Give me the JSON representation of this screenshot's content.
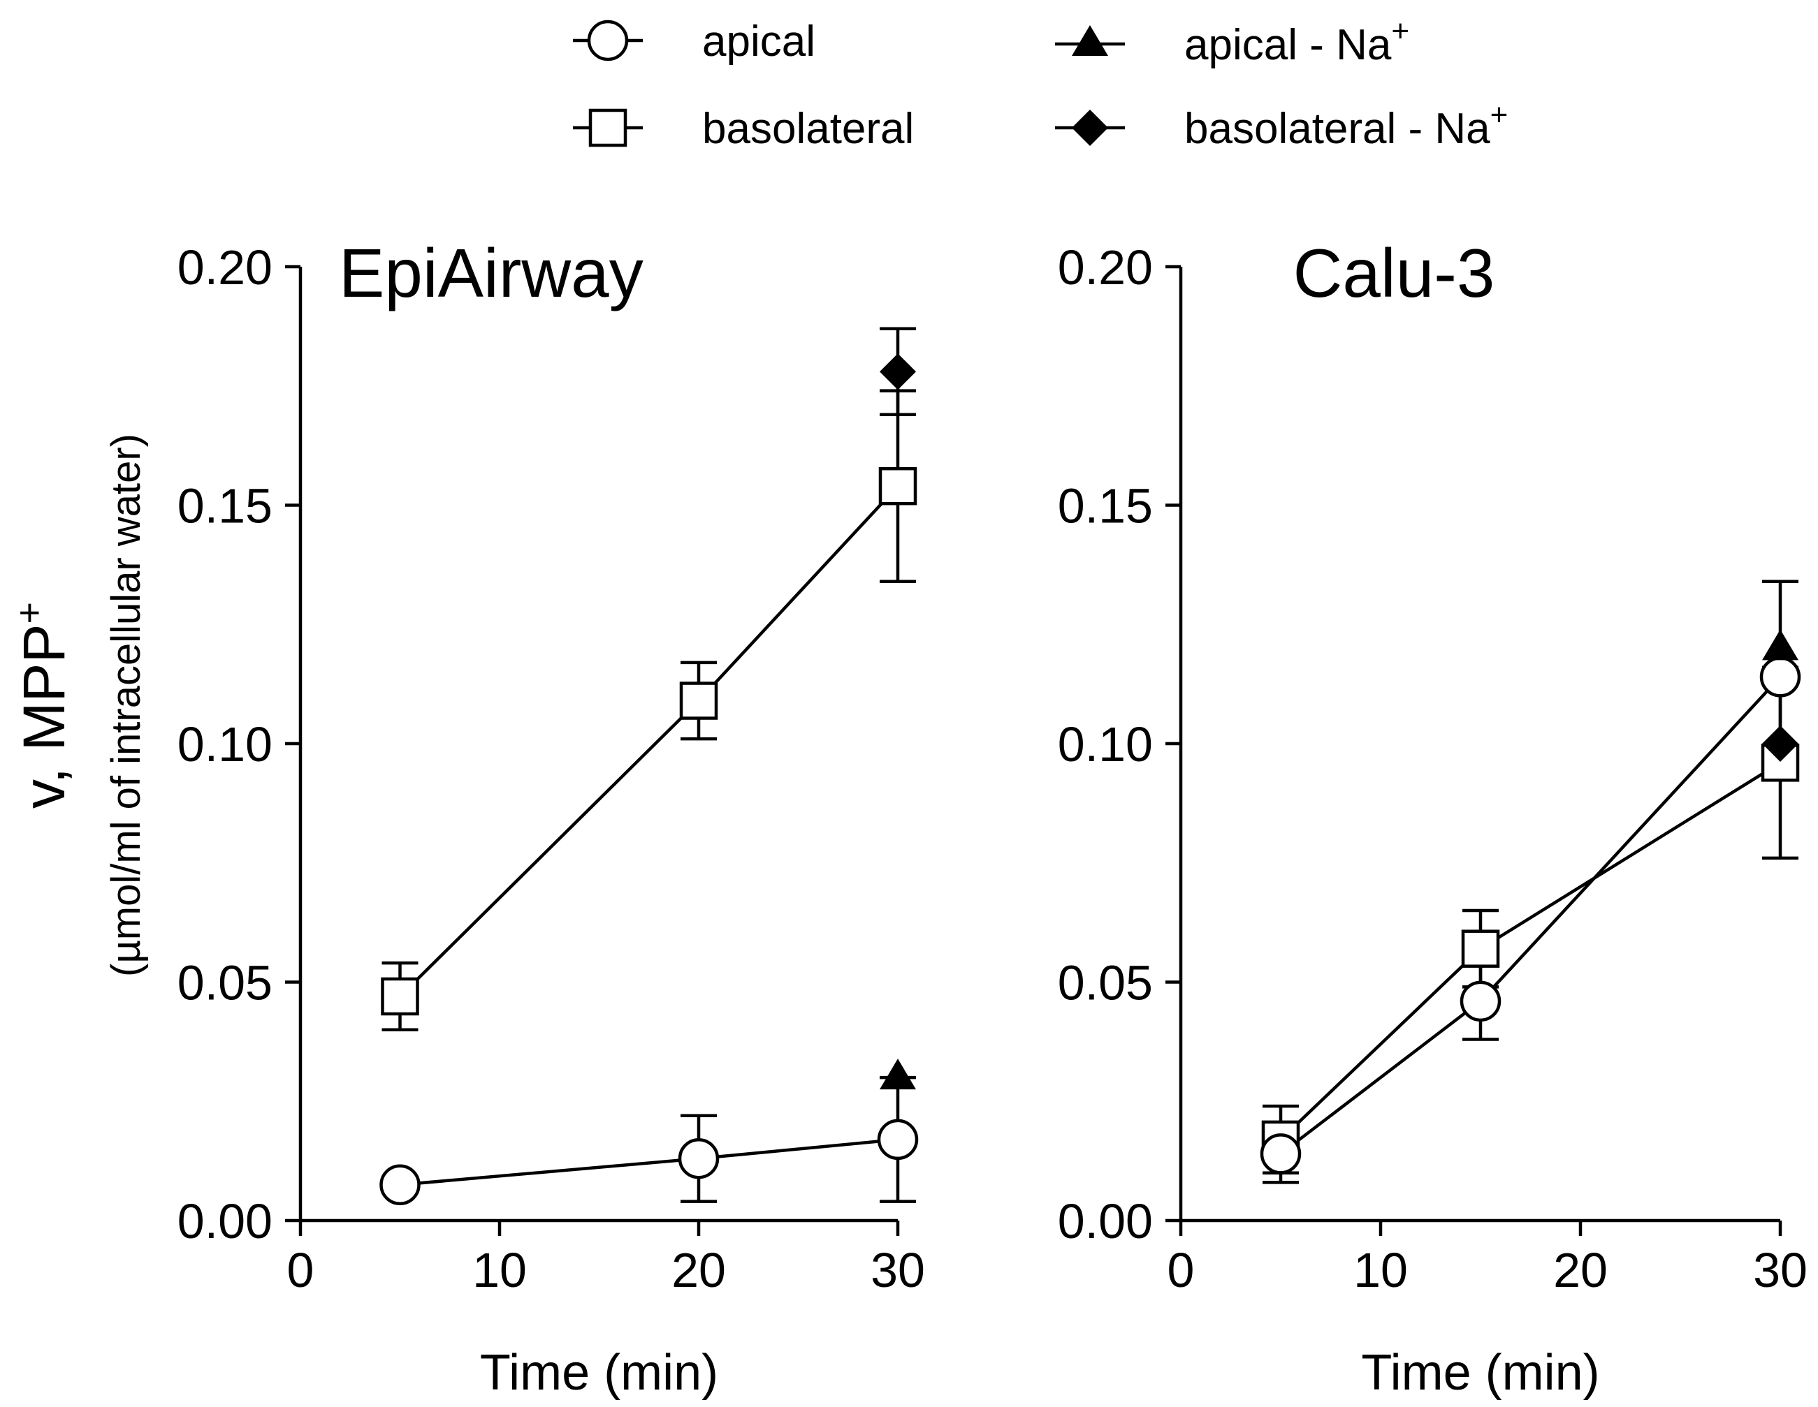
{
  "chart_data": {
    "type": "line",
    "legend": {
      "placement": "top",
      "entries": [
        {
          "label": "apical",
          "sup": "",
          "marker": "open-circle"
        },
        {
          "label": "basolateral",
          "sup": "",
          "marker": "open-square"
        },
        {
          "label": "apical - Na",
          "sup": "+",
          "marker": "filled-triangle"
        },
        {
          "label": "basolateral - Na",
          "sup": "+",
          "marker": "filled-diamond"
        }
      ]
    },
    "ylabel": {
      "main": "v, MPP",
      "sup": "+",
      "sub": "(µmol/ml of intracellular water)"
    },
    "panels": [
      {
        "title": "EpiAirway",
        "xlabel": "Time (min)",
        "xlim": [
          0,
          30
        ],
        "ylim": [
          0,
          0.2
        ],
        "xticks": [
          0,
          10,
          20,
          30
        ],
        "yticks": [
          0.0,
          0.05,
          0.1,
          0.15,
          0.2
        ],
        "ytick_labels": [
          "0.00",
          "0.05",
          "0.10",
          "0.15",
          "0.20"
        ],
        "series": [
          {
            "name": "basolateral",
            "marker": "open-square",
            "connected": true,
            "x": [
              5,
              20,
              30
            ],
            "y": [
              0.047,
              0.109,
              0.154
            ],
            "err": [
              0.007,
              0.008,
              0.02
            ]
          },
          {
            "name": "apical",
            "marker": "open-circle",
            "connected": true,
            "x": [
              5,
              20,
              30
            ],
            "y": [
              0.0075,
              0.013,
              0.017
            ],
            "err": [
              0.0,
              0.009,
              0.013
            ]
          },
          {
            "name": "basolateral - Na+",
            "marker": "filled-diamond",
            "connected": false,
            "x": [
              30
            ],
            "y": [
              0.178
            ],
            "err": [
              0.009
            ]
          },
          {
            "name": "apical - Na+",
            "marker": "filled-triangle",
            "connected": false,
            "x": [
              30
            ],
            "y": [
              0.03
            ],
            "err": [
              0.0
            ]
          }
        ]
      },
      {
        "title": "Calu-3",
        "xlabel": "Time (min)",
        "xlim": [
          0,
          30
        ],
        "ylim": [
          0,
          0.2
        ],
        "xticks": [
          0,
          10,
          20,
          30
        ],
        "yticks": [
          0.0,
          0.05,
          0.1,
          0.15,
          0.2
        ],
        "ytick_labels": [
          "0.00",
          "0.05",
          "0.10",
          "0.15",
          "0.20"
        ],
        "series": [
          {
            "name": "basolateral",
            "marker": "open-square",
            "connected": true,
            "x": [
              5,
              15,
              30
            ],
            "y": [
              0.017,
              0.057,
              0.096
            ],
            "err": [
              0.007,
              0.008,
              0.02
            ]
          },
          {
            "name": "apical",
            "marker": "open-circle",
            "connected": true,
            "x": [
              5,
              15,
              30
            ],
            "y": [
              0.014,
              0.046,
              0.114
            ],
            "err": [
              0.006,
              0.008,
              0.02
            ]
          },
          {
            "name": "apical - Na+",
            "marker": "filled-triangle",
            "connected": false,
            "x": [
              30
            ],
            "y": [
              0.12
            ],
            "err": [
              0.0
            ]
          },
          {
            "name": "basolateral - Na+",
            "marker": "filled-diamond",
            "connected": false,
            "x": [
              30
            ],
            "y": [
              0.1
            ],
            "err": [
              0.0
            ]
          }
        ]
      }
    ]
  }
}
